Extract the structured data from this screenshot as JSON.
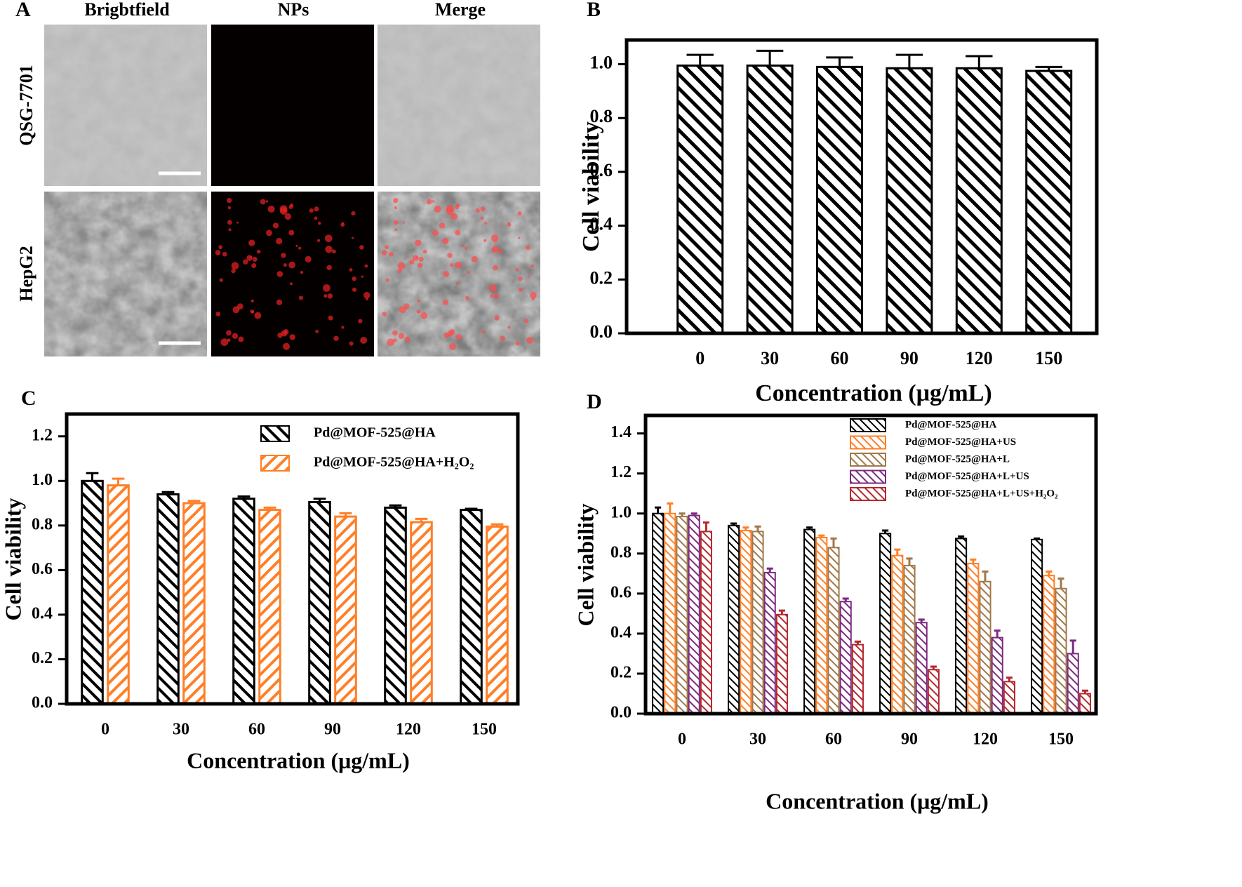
{
  "panel_a": {
    "label": "A",
    "columns": [
      "Brigbtfield",
      "NPs",
      "Merge"
    ],
    "rows": [
      "QSG-7701",
      "HepG2"
    ]
  },
  "chart_data": [
    {
      "type": "bar",
      "panel": "B",
      "ylabel": "Cell viability",
      "xlabel": "Concentration (μg/mL)",
      "categories": [
        "0",
        "30",
        "60",
        "90",
        "120",
        "150"
      ],
      "series": [
        {
          "color": "#000000",
          "values": [
            0.995,
            0.995,
            0.99,
            0.985,
            0.985,
            0.975
          ],
          "errors": [
            0.04,
            0.055,
            0.035,
            0.05,
            0.045,
            0.015
          ]
        }
      ],
      "ylim": [
        0,
        1.09
      ],
      "yticks": [
        {
          "value": 0,
          "label": "0.0"
        },
        0.2,
        0.4,
        0.6,
        0.8,
        {
          "value": 1,
          "label": "1.0"
        }
      ]
    },
    {
      "type": "bar",
      "panel": "C",
      "ylabel": "Cell viability",
      "xlabel": "Concentration (μg/mL)",
      "categories": [
        "0",
        "30",
        "60",
        "90",
        "120",
        "150"
      ],
      "series": [
        {
          "name": "Pd@MOF-525@HA",
          "color": "#000000",
          "values": [
            1.0,
            0.94,
            0.92,
            0.905,
            0.88,
            0.87
          ],
          "errors": [
            0.035,
            0.01,
            0.01,
            0.015,
            0.01,
            0.005
          ]
        },
        {
          "name": "Pd@MOF-525@HA+H₂O₂",
          "color": "#ff7f27",
          "values": [
            0.98,
            0.9,
            0.87,
            0.84,
            0.815,
            0.795
          ],
          "errors": [
            0.03,
            0.01,
            0.01,
            0.015,
            0.015,
            0.01
          ]
        }
      ],
      "ylim": [
        0,
        1.3
      ],
      "yticks": [
        {
          "value": 0,
          "label": "0.0"
        },
        0.2,
        0.4,
        0.6,
        0.8,
        {
          "value": 1,
          "label": "1.0"
        },
        1.2
      ]
    },
    {
      "type": "bar",
      "panel": "D",
      "ylabel": "Cell viability",
      "xlabel": "Concentration (μg/mL)",
      "categories": [
        "0",
        "30",
        "60",
        "90",
        "120",
        "150"
      ],
      "series": [
        {
          "name": "Pd@MOF-525@HA",
          "color": "#000000",
          "values": [
            1.0,
            0.94,
            0.92,
            0.9,
            0.875,
            0.87
          ],
          "errors": [
            0.03,
            0.01,
            0.01,
            0.015,
            0.01,
            0.005
          ]
        },
        {
          "name": "Pd@MOF-525@HA+US",
          "color": "#ff7f27",
          "values": [
            1.0,
            0.915,
            0.88,
            0.79,
            0.75,
            0.69
          ],
          "errors": [
            0.05,
            0.015,
            0.01,
            0.03,
            0.02,
            0.02
          ]
        },
        {
          "name": "Pd@MOF-525@HA+L",
          "color": "#a0784a",
          "values": [
            0.985,
            0.91,
            0.83,
            0.74,
            0.66,
            0.625
          ],
          "errors": [
            0.015,
            0.025,
            0.045,
            0.035,
            0.05,
            0.05
          ]
        },
        {
          "name": "Pd@MOF-525@HA+L+US",
          "color": "#7b2a80",
          "values": [
            0.99,
            0.705,
            0.56,
            0.455,
            0.38,
            0.3
          ],
          "errors": [
            0.01,
            0.02,
            0.015,
            0.015,
            0.035,
            0.065
          ]
        },
        {
          "name": "Pd@MOF-525@HA+L+US+H₂O₂",
          "color": "#b5282e",
          "values": [
            0.91,
            0.495,
            0.345,
            0.22,
            0.16,
            0.1
          ],
          "errors": [
            0.045,
            0.02,
            0.015,
            0.015,
            0.02,
            0.015
          ]
        }
      ],
      "ylim": [
        0,
        1.49
      ],
      "yticks": [
        {
          "value": 0,
          "label": "0.0"
        },
        0.2,
        0.4,
        0.6,
        0.8,
        {
          "value": 1,
          "label": "1.0"
        },
        1.2,
        1.4
      ]
    }
  ]
}
